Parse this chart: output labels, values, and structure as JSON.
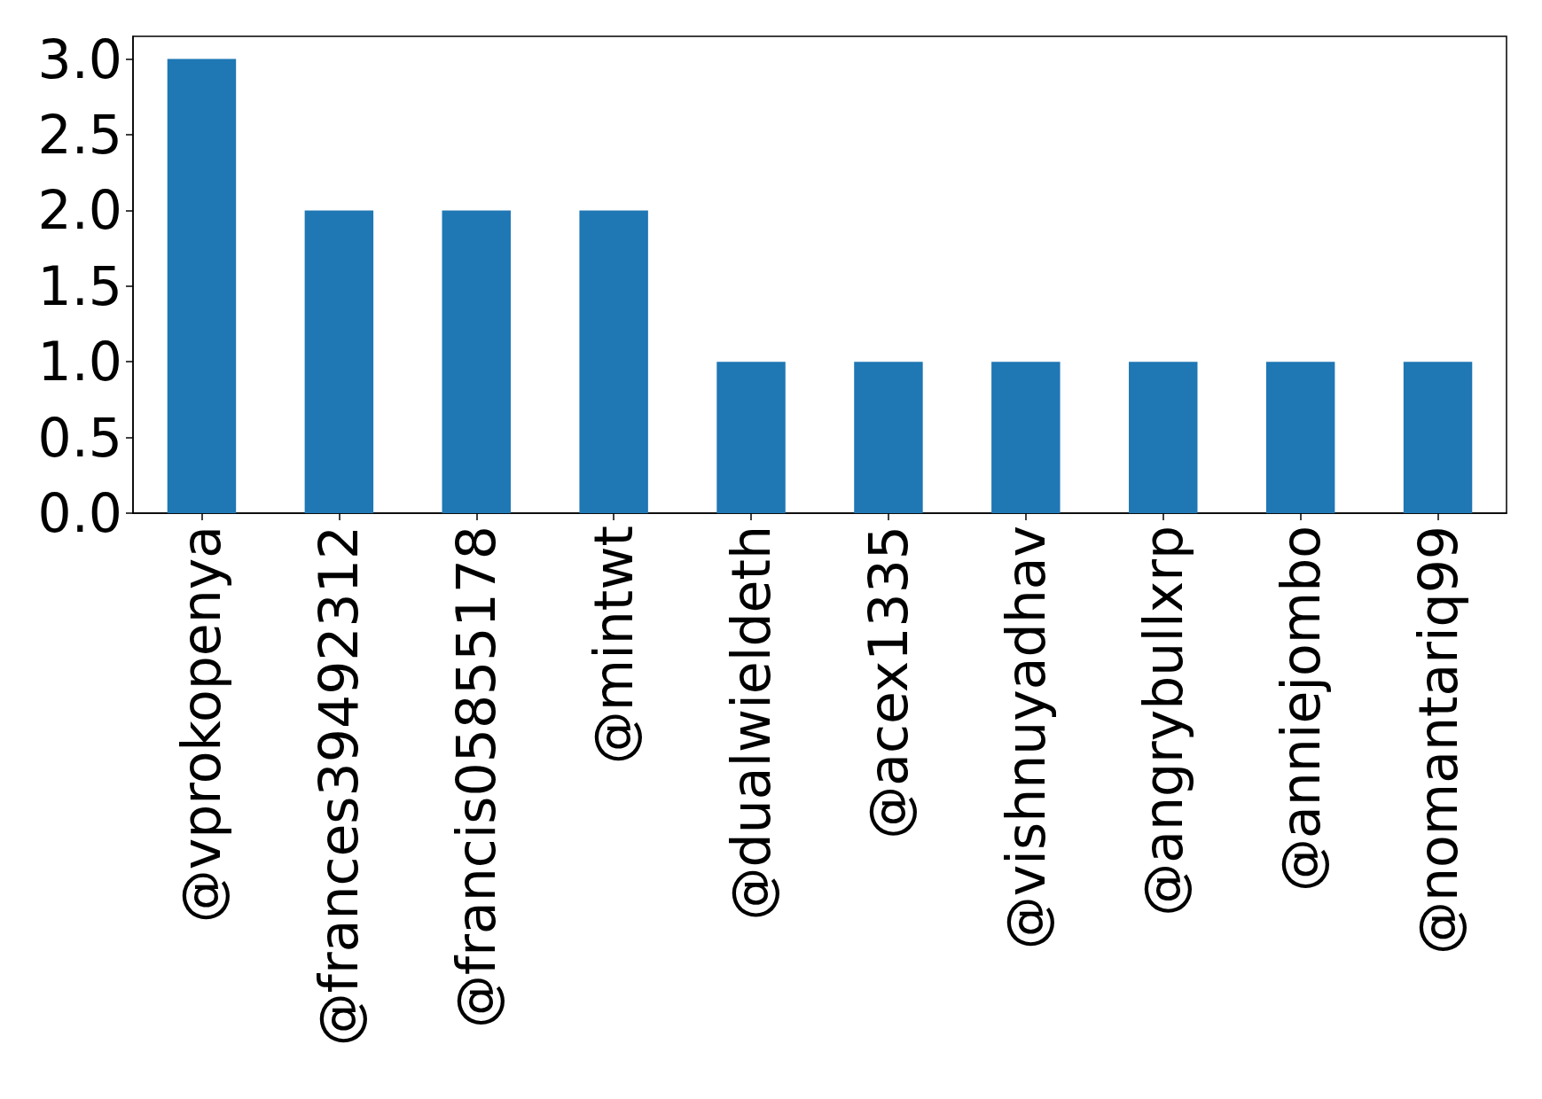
{
  "chart_data": {
    "type": "bar",
    "categories": [
      "@vprokopenya",
      "@frances39492312",
      "@francis05855178",
      "@mintwt",
      "@dualwieldeth",
      "@acex1335",
      "@vishnuyadhav",
      "@angrybullxrp",
      "@anniejombo",
      "@nomantariq99"
    ],
    "values": [
      3,
      2,
      2,
      2,
      1,
      1,
      1,
      1,
      1,
      1
    ],
    "color": "#1f77b4",
    "ylim": [
      0,
      3.15
    ],
    "yticks": [
      {
        "value": 0,
        "label": "0.0"
      },
      {
        "value": 0.5,
        "label": "0.5"
      },
      {
        "value": 1,
        "label": "1.0"
      },
      {
        "value": 1.5,
        "label": "1.5"
      },
      {
        "value": 2,
        "label": "2.0"
      },
      {
        "value": 2.5,
        "label": "2.5"
      },
      {
        "value": 3,
        "label": "3.0"
      }
    ],
    "grid": false
  }
}
